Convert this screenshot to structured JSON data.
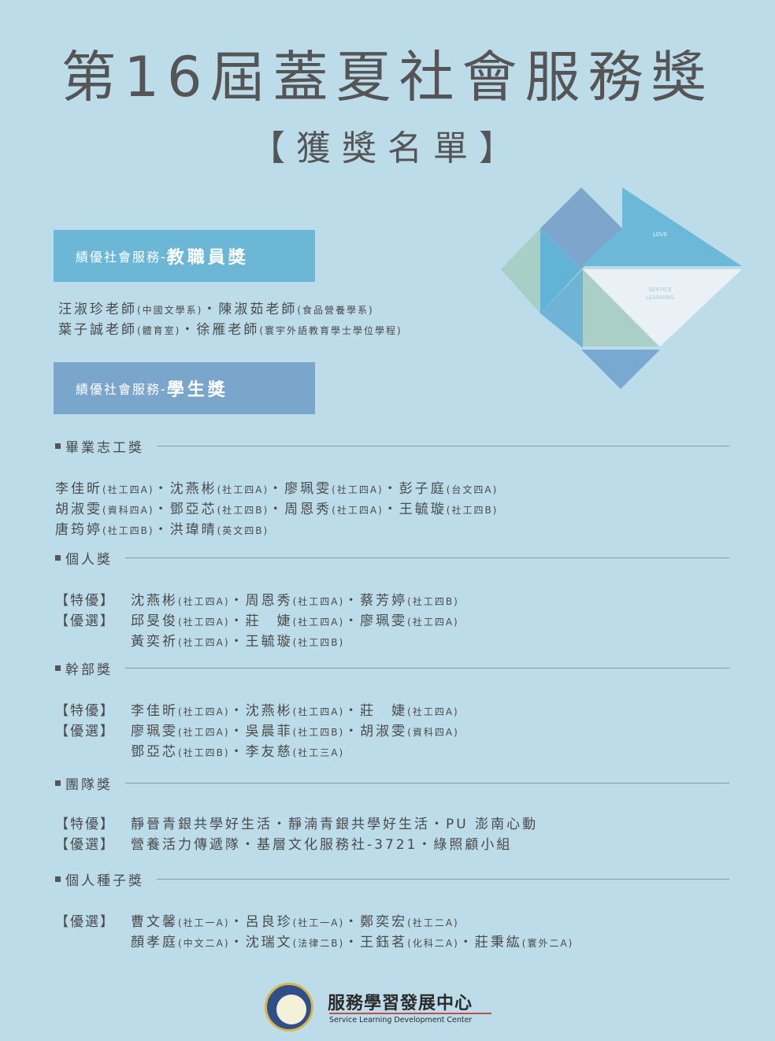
{
  "header": {
    "title": "第16屆蓋夏社會服務獎",
    "subtitle": "【獲獎名單】"
  },
  "graphic": {
    "love": "LOVE",
    "service_1": "SERVICE",
    "service_2": "LEARNING"
  },
  "staff": {
    "banner_prefix": "績優社會服務-",
    "banner_title": "教職員獎",
    "lines": [
      [
        "汪淑珍老師",
        "(中國文學系)",
        "・陳淑茹老師",
        "(食品營養學系)"
      ],
      [
        "葉子誠老師",
        "(體育室)",
        "・徐雁老師",
        "(寰宇外語教育學士學位學程)"
      ]
    ]
  },
  "student": {
    "banner_prefix": "績優社會服務-",
    "banner_title": "學生獎"
  },
  "sections": [
    {
      "heading": "畢業志工獎",
      "rows": [
        {
          "tag": "",
          "names": [
            [
              "李佳昕",
              "(社工四A)"
            ],
            [
              "・沈燕彬",
              "(社工四A)"
            ],
            [
              "・廖珮雯",
              "(社工四A)"
            ],
            [
              "・彭子庭",
              "(台文四A)"
            ]
          ]
        },
        {
          "tag": "",
          "names": [
            [
              "胡淑雯",
              "(資科四A)"
            ],
            [
              "・鄧亞芯",
              "(社工四B)"
            ],
            [
              "・周恩秀",
              "(社工四A)"
            ],
            [
              "・王毓璇",
              "(社工四B)"
            ]
          ]
        },
        {
          "tag": "",
          "names": [
            [
              "唐筠婷",
              "(社工四B)"
            ],
            [
              "・洪瑋晴",
              "(英文四B)"
            ]
          ]
        }
      ]
    },
    {
      "heading": "個人獎",
      "rows": [
        {
          "tag": "【特優】",
          "names": [
            [
              "沈燕彬",
              "(社工四A)"
            ],
            [
              "・周恩秀",
              "(社工四A)"
            ],
            [
              "・蔡芳婷",
              "(社工四B)"
            ]
          ]
        },
        {
          "tag": "【優選】",
          "names": [
            [
              "邱旻俊",
              "(社工四A)"
            ],
            [
              "・莊　婕",
              "(社工四A)"
            ],
            [
              "・廖珮雯",
              "(社工四A)"
            ]
          ]
        },
        {
          "tag": " ",
          "names": [
            [
              "黃奕祈",
              "(社工四A)"
            ],
            [
              "・王毓璇",
              "(社工四B)"
            ]
          ]
        }
      ]
    },
    {
      "heading": "幹部獎",
      "rows": [
        {
          "tag": "【特優】",
          "names": [
            [
              "李佳昕",
              "(社工四A)"
            ],
            [
              "・沈燕彬",
              "(社工四A)"
            ],
            [
              "・莊　婕",
              "(社工四A)"
            ]
          ]
        },
        {
          "tag": "【優選】",
          "names": [
            [
              "廖珮雯",
              "(社工四A)"
            ],
            [
              "・吳晨菲",
              "(社工四B)"
            ],
            [
              "・胡淑雯",
              "(資科四A)"
            ]
          ]
        },
        {
          "tag": " ",
          "names": [
            [
              "鄧亞芯",
              "(社工四B)"
            ],
            [
              "・李友慈",
              "(社工三A)"
            ]
          ]
        }
      ]
    },
    {
      "heading": "團隊獎",
      "rows": [
        {
          "tag": "【特優】",
          "names": [
            [
              "靜晉青銀共學好生活・靜湳青銀共學好生活・PU 澎南心動",
              ""
            ]
          ]
        },
        {
          "tag": "【優選】",
          "names": [
            [
              "營養活力傳遞隊・基層文化服務社-3721・綠照顧小組",
              ""
            ]
          ]
        }
      ]
    },
    {
      "heading": "個人種子獎",
      "rows": [
        {
          "tag": "【優選】",
          "names": [
            [
              "曹文馨",
              "(社工一A)"
            ],
            [
              "・呂良珍",
              "(社工一A)"
            ],
            [
              "・鄭奕宏",
              "(社工二A)"
            ]
          ]
        },
        {
          "tag": " ",
          "names": [
            [
              "顏孝庭",
              "(中文二A)"
            ],
            [
              "・沈瑞文",
              "(法律二B)"
            ],
            [
              "・王鈺茗",
              "(化科二A)"
            ],
            [
              "・莊秉紘",
              "(寰外二A)"
            ]
          ]
        }
      ]
    }
  ],
  "footer": {
    "center_name": "服務學習發展中心",
    "center_en": "Service Learning Development Center"
  }
}
